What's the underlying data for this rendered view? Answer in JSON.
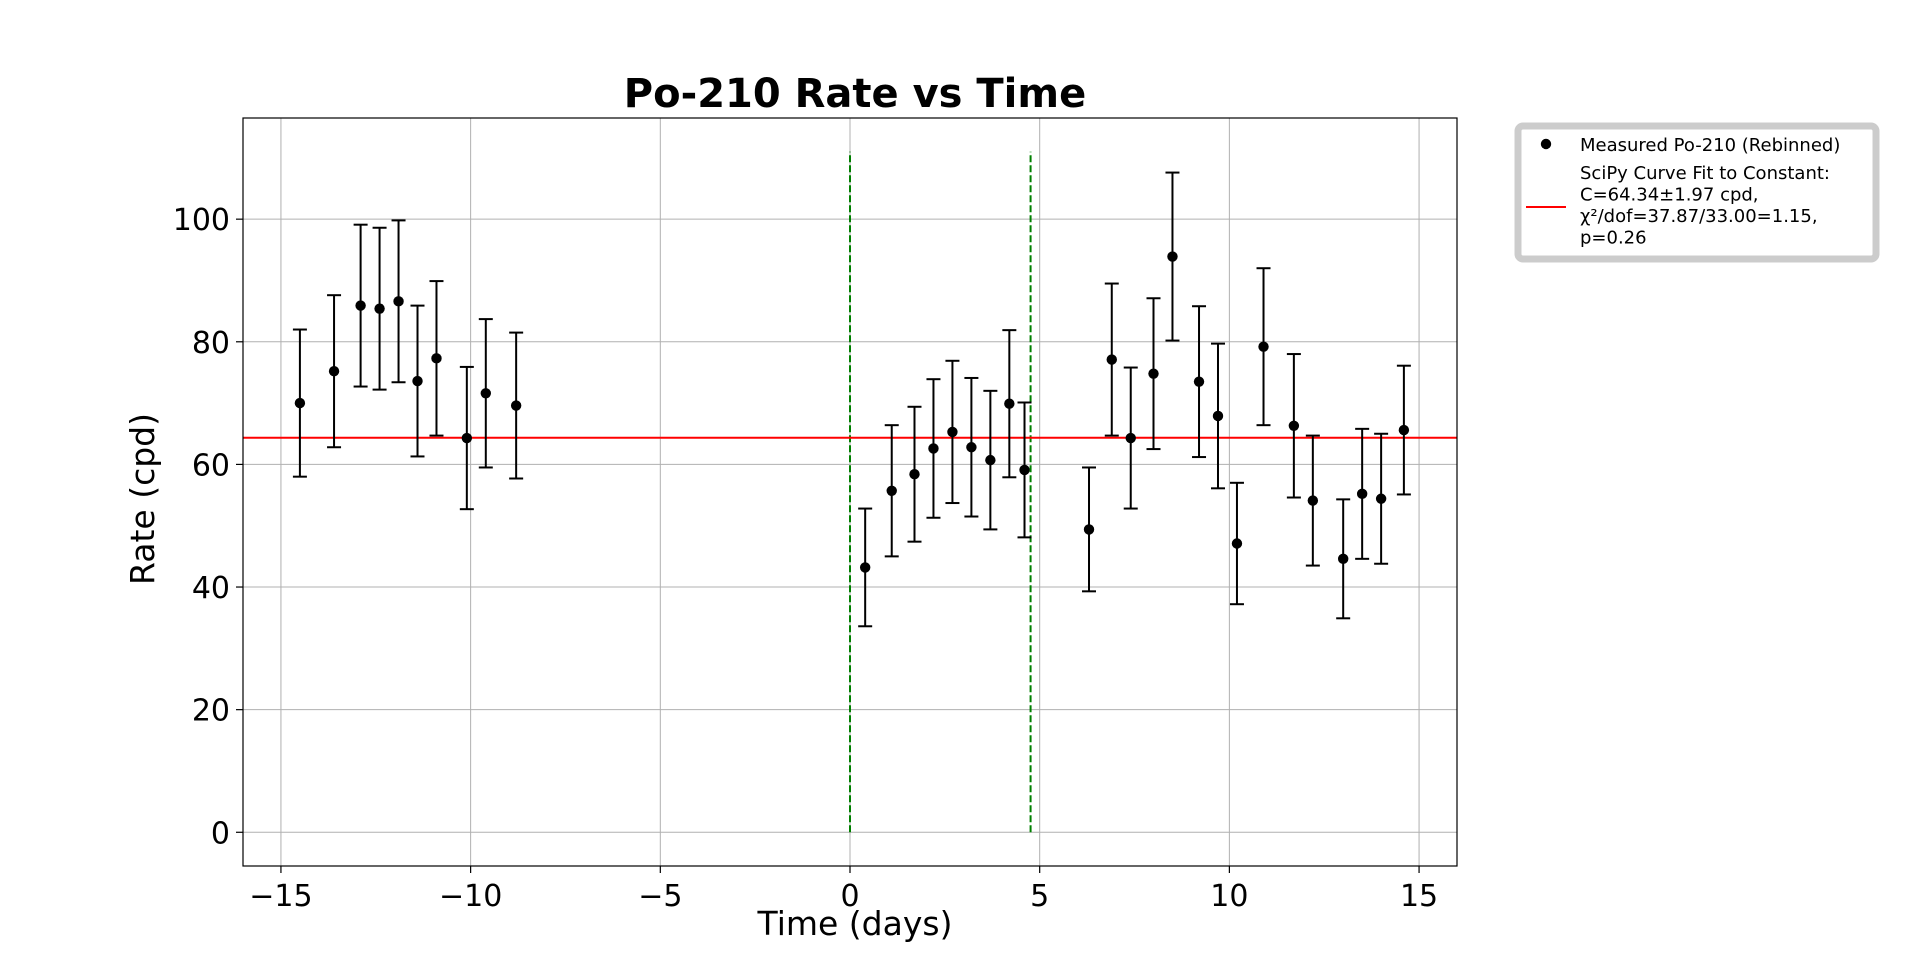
{
  "chart_data": {
    "type": "scatter",
    "title": "Po-210 Rate vs Time",
    "xlabel": "Time (days)",
    "ylabel": "Rate (cpd)",
    "xlim": [
      -16,
      16
    ],
    "ylim": [
      -5.5,
      116.5
    ],
    "xticks": [
      -15,
      -10,
      -5,
      0,
      5,
      10,
      15
    ],
    "yticks": [
      0,
      20,
      40,
      60,
      80,
      100
    ],
    "grid": true,
    "legend_position": "outside-upper-right",
    "series": [
      {
        "name": "Measured Po-210 (Rebinned)",
        "kind": "errorbar",
        "color": "#000000",
        "points": [
          {
            "x": -14.5,
            "y": 70.0,
            "err": 12.0
          },
          {
            "x": -13.6,
            "y": 75.2,
            "err": 12.4
          },
          {
            "x": -12.9,
            "y": 85.9,
            "err": 13.2
          },
          {
            "x": -12.4,
            "y": 85.4,
            "err": 13.2
          },
          {
            "x": -11.9,
            "y": 86.6,
            "err": 13.2
          },
          {
            "x": -11.4,
            "y": 73.6,
            "err": 12.3
          },
          {
            "x": -10.9,
            "y": 77.3,
            "err": 12.6
          },
          {
            "x": -10.1,
            "y": 64.3,
            "err": 11.6
          },
          {
            "x": -9.6,
            "y": 71.6,
            "err": 12.1
          },
          {
            "x": -8.8,
            "y": 69.6,
            "err": 11.9
          },
          {
            "x": 0.4,
            "y": 43.2,
            "err": 9.6
          },
          {
            "x": 1.1,
            "y": 55.7,
            "err": 10.7
          },
          {
            "x": 1.7,
            "y": 58.4,
            "err": 11.0
          },
          {
            "x": 2.2,
            "y": 62.6,
            "err": 11.3
          },
          {
            "x": 2.7,
            "y": 65.3,
            "err": 11.6
          },
          {
            "x": 3.2,
            "y": 62.8,
            "err": 11.3
          },
          {
            "x": 3.7,
            "y": 60.7,
            "err": 11.3
          },
          {
            "x": 4.2,
            "y": 69.9,
            "err": 12.0
          },
          {
            "x": 4.6,
            "y": 59.1,
            "err": 11.0
          },
          {
            "x": 6.3,
            "y": 49.4,
            "err": 10.1
          },
          {
            "x": 6.9,
            "y": 77.1,
            "err": 12.4
          },
          {
            "x": 7.4,
            "y": 64.3,
            "err": 11.5
          },
          {
            "x": 8.0,
            "y": 74.8,
            "err": 12.3
          },
          {
            "x": 8.5,
            "y": 93.9,
            "err": 13.7
          },
          {
            "x": 9.2,
            "y": 73.5,
            "err": 12.3
          },
          {
            "x": 9.7,
            "y": 67.9,
            "err": 11.8
          },
          {
            "x": 10.2,
            "y": 47.1,
            "err": 9.9
          },
          {
            "x": 10.9,
            "y": 79.2,
            "err": 12.8
          },
          {
            "x": 11.7,
            "y": 66.3,
            "err": 11.7
          },
          {
            "x": 12.2,
            "y": 54.1,
            "err": 10.6
          },
          {
            "x": 13.0,
            "y": 44.6,
            "err": 9.7
          },
          {
            "x": 13.5,
            "y": 55.2,
            "err": 10.6
          },
          {
            "x": 14.0,
            "y": 54.4,
            "err": 10.6
          },
          {
            "x": 14.6,
            "y": 65.6,
            "err": 10.5
          }
        ]
      },
      {
        "name": "SciPy Curve Fit to Constant:\nC=64.34±1.97 cpd,\nχ²/dof=37.87/33.00=1.15,\np=0.26",
        "kind": "hline",
        "color": "#ff0000",
        "y": 64.34
      }
    ],
    "vlines": [
      {
        "x": 0.0,
        "ymin": 0,
        "ymax": 111,
        "color": "#008000",
        "style": "dashed"
      },
      {
        "x": 4.76,
        "ymin": 0,
        "ymax": 111,
        "color": "#008000",
        "style": "dashed"
      }
    ]
  }
}
